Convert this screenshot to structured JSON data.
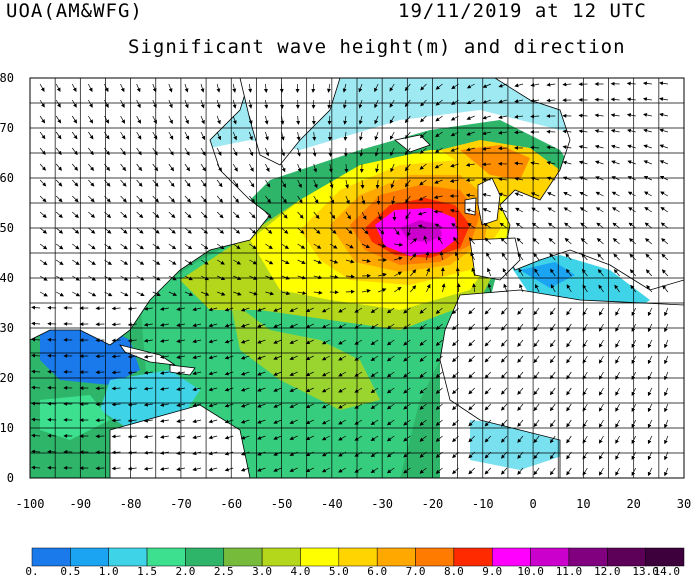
{
  "header": {
    "source": "UOA(AM&WFG)",
    "datetime": "19/11/2019 at 12 UTC",
    "title": "Significant wave height(m) and direction"
  },
  "map": {
    "lon_range": [
      -100,
      30
    ],
    "lat_range": [
      0,
      80
    ],
    "x_ticks": [
      "-100",
      "-90",
      "-80",
      "-70",
      "-60",
      "-50",
      "-40",
      "-30",
      "-20",
      "-10",
      "0",
      "10",
      "20",
      "30"
    ],
    "y_ticks": [
      "0",
      "10",
      "20",
      "30",
      "40",
      "50",
      "60",
      "70",
      "80"
    ],
    "grid": "5 degree graticule",
    "max_wave_center": {
      "lon": -24,
      "lat": 49
    }
  },
  "colorbar": {
    "colors": [
      "#1a7aeb",
      "#1aa4f2",
      "#3fd3e8",
      "#3ce08f",
      "#2fb56a",
      "#77bb3a",
      "#b4d61b",
      "#ffff00",
      "#ffd400",
      "#ffa800",
      "#ff7b00",
      "#ff2a00",
      "#ff00ff",
      "#cc00cc",
      "#800080",
      "#5c0058",
      "#3d003d"
    ],
    "labels": [
      "0.",
      "0.5",
      "1.0",
      "1.5",
      "2.0",
      "2.5",
      "3.0",
      "4.0",
      "5.0",
      "6.0",
      "7.0",
      "8.0",
      "9.0",
      "10.0",
      "11.0",
      "12.0",
      "13.0",
      "14.0"
    ]
  }
}
